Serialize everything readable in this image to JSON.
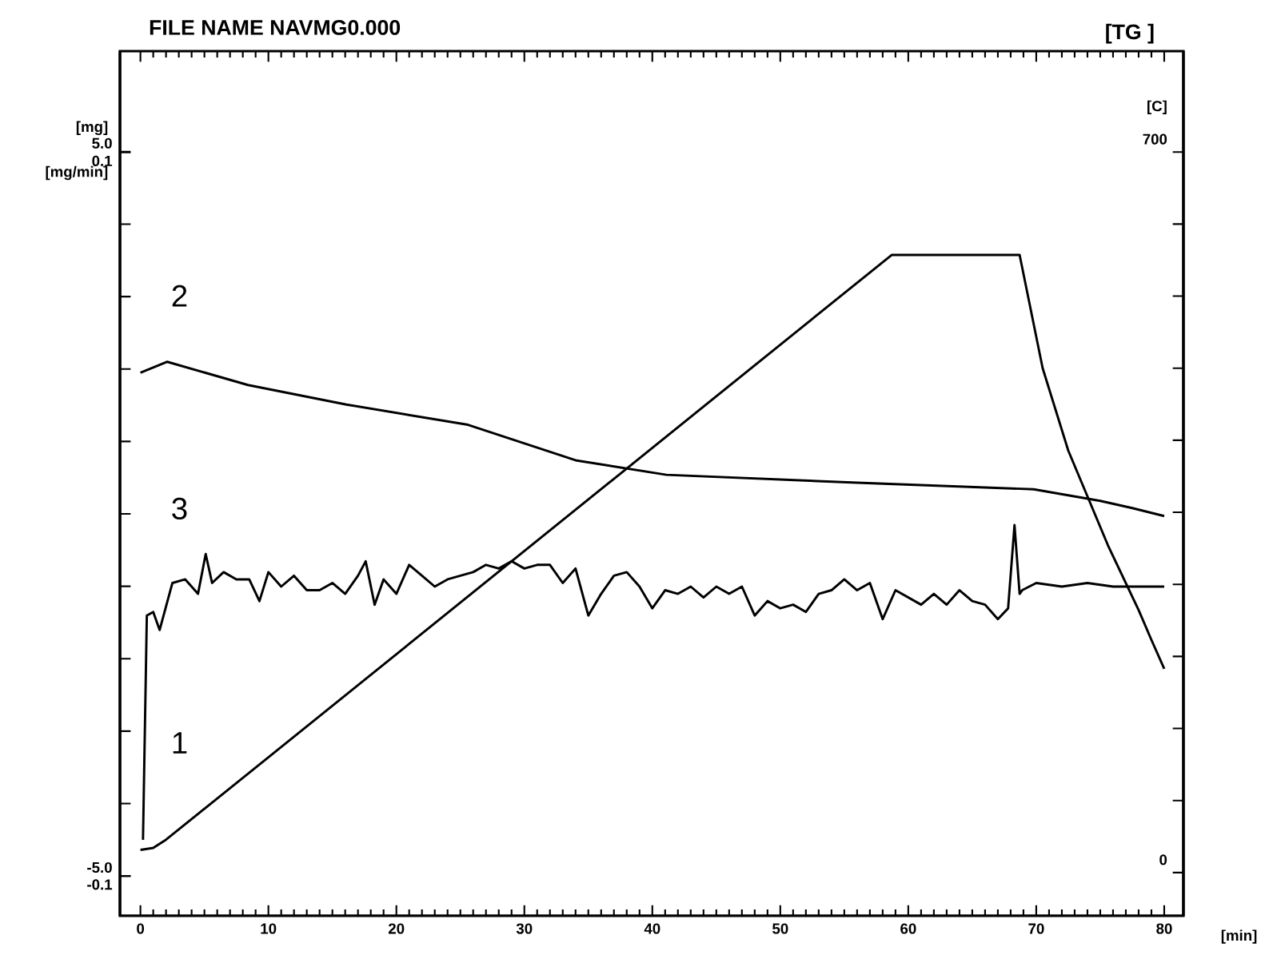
{
  "chart_data": {
    "type": "line",
    "title": "FILE NAME NAVMG0.000",
    "annotations": [
      "[TG ]",
      "1",
      "2",
      "3"
    ],
    "xlabel": "[min]",
    "ylabel": "[mg]",
    "y3label": "[mg/min]",
    "y2label": "[C]",
    "xlim": [
      -1.6,
      81.5
    ],
    "xticks": [
      0,
      10,
      20,
      30,
      40,
      50,
      60,
      70,
      80
    ],
    "ylim": [
      -5.55,
      6.39
    ],
    "yticks": [
      {
        "value": -5,
        "label": "-5.0"
      },
      {
        "value": -4,
        "label": null
      },
      {
        "value": -3,
        "label": null
      },
      {
        "value": -2,
        "label": null
      },
      {
        "value": -1,
        "label": null
      },
      {
        "value": 0,
        "label": null
      },
      {
        "value": 1,
        "label": null
      },
      {
        "value": 2,
        "label": null
      },
      {
        "value": 3,
        "label": null
      },
      {
        "value": 4,
        "label": null
      },
      {
        "value": 5,
        "label": "5.0"
      }
    ],
    "y3lim": [
      -0.111,
      0.128
    ],
    "y3ticks": [
      -0.1,
      0.1
    ],
    "y2lim": [
      -42,
      798
    ],
    "y2ticks": [
      0,
      {
        "value": 70,
        "label": null
      },
      {
        "value": 140,
        "label": null
      },
      {
        "value": 210,
        "label": null
      },
      {
        "value": 280,
        "label": null
      },
      {
        "value": 350,
        "label": null
      },
      {
        "value": 420,
        "label": null
      },
      {
        "value": 490,
        "label": null
      },
      {
        "value": 560,
        "label": null
      },
      {
        "value": 630,
        "label": null
      },
      700
    ],
    "marker": "none",
    "line_style": "solid",
    "series": [
      {
        "color": "#000000",
        "axis": "y2",
        "x": [
          0,
          1,
          2,
          10.6,
          58.7,
          68.7,
          70.5,
          72.5,
          75.6,
          78,
          79,
          80
        ],
        "values": [
          22,
          24,
          32,
          118,
          600,
          600,
          490,
          410,
          318,
          255,
          226,
          198
        ]
      },
      {
        "color": "#000000",
        "axis": "y",
        "x": [
          0,
          2.1,
          8.4,
          16.1,
          25.6,
          34.0,
          41.1,
          56.0,
          69.8,
          75.0,
          77.5,
          80.0
        ],
        "values": [
          1.95,
          2.1,
          1.78,
          1.51,
          1.23,
          0.74,
          0.54,
          0.43,
          0.34,
          0.18,
          0.08,
          -0.03
        ]
      },
      {
        "color": "#000000",
        "axis": "y3",
        "x": [
          0.2,
          0.5,
          1.0,
          1.5,
          2.5,
          3.5,
          4.5,
          5.1,
          5.6,
          6.5,
          7.5,
          8.5,
          9.3,
          10.0,
          11,
          12,
          13,
          14,
          15,
          16,
          17,
          17.6,
          18.3,
          19,
          20,
          21,
          22,
          23,
          24,
          25,
          26,
          27,
          28,
          29,
          30,
          31,
          32,
          33,
          34,
          35,
          36,
          37,
          38,
          39,
          40,
          41,
          42,
          43,
          44,
          45,
          46,
          47,
          48,
          49,
          50,
          51,
          52,
          53,
          54,
          55,
          56,
          57,
          58,
          59,
          60,
          61,
          62,
          63,
          64,
          65,
          66,
          67,
          67.8,
          68.3,
          68.7,
          68.9,
          70,
          72,
          74,
          76,
          78,
          80
        ],
        "values": [
          -0.09,
          -0.028,
          -0.027,
          -0.032,
          -0.019,
          -0.018,
          -0.022,
          -0.011,
          -0.019,
          -0.016,
          -0.018,
          -0.018,
          -0.024,
          -0.016,
          -0.02,
          -0.017,
          -0.021,
          -0.021,
          -0.019,
          -0.022,
          -0.017,
          -0.013,
          -0.025,
          -0.018,
          -0.022,
          -0.014,
          -0.017,
          -0.02,
          -0.018,
          -0.017,
          -0.016,
          -0.014,
          -0.015,
          -0.013,
          -0.015,
          -0.014,
          -0.014,
          -0.019,
          -0.015,
          -0.028,
          -0.022,
          -0.017,
          -0.016,
          -0.02,
          -0.026,
          -0.021,
          -0.022,
          -0.02,
          -0.023,
          -0.02,
          -0.022,
          -0.02,
          -0.028,
          -0.024,
          -0.026,
          -0.025,
          -0.027,
          -0.022,
          -0.021,
          -0.018,
          -0.021,
          -0.019,
          -0.029,
          -0.021,
          -0.023,
          -0.025,
          -0.022,
          -0.025,
          -0.021,
          -0.024,
          -0.025,
          -0.029,
          -0.026,
          -0.003,
          -0.022,
          -0.021,
          -0.019,
          -0.02,
          -0.019,
          -0.02,
          -0.02,
          -0.02
        ]
      }
    ]
  }
}
